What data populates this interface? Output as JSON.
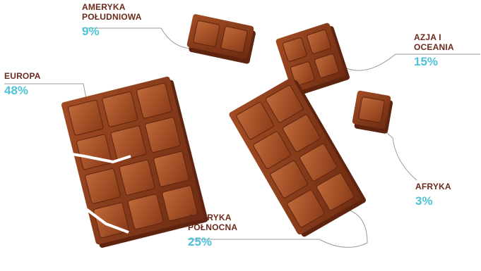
{
  "chart_data": {
    "type": "pie",
    "title": "",
    "categories": [
      "AMERYKA POŁUDNIOWA",
      "AZJA I OCEANIA",
      "EUROPA",
      "AMERYKA PÓŁNOCNA",
      "AFRYKA"
    ],
    "values": [
      9,
      15,
      48,
      25,
      3
    ],
    "value_labels": [
      "9%",
      "15%",
      "48%",
      "25%",
      "3%"
    ],
    "unit": "%",
    "region_lines": [
      [
        "AMERYKA",
        "POŁUDNIOWA"
      ],
      [
        "AZJA I OCEANIA"
      ],
      [
        "EUROPA"
      ],
      [
        "AMERYKA",
        "PÓŁNOCNA"
      ],
      [
        "AFRYKA"
      ]
    ],
    "legend": "none",
    "colors": {
      "chocolate": "#8a3d1c",
      "chocolate_dark": "#5e2410",
      "chocolate_light": "#b05a30",
      "region_text": "#6b2a1c",
      "percent_text": "#4ec3d6",
      "leader_line": "#9a9a9a"
    }
  }
}
